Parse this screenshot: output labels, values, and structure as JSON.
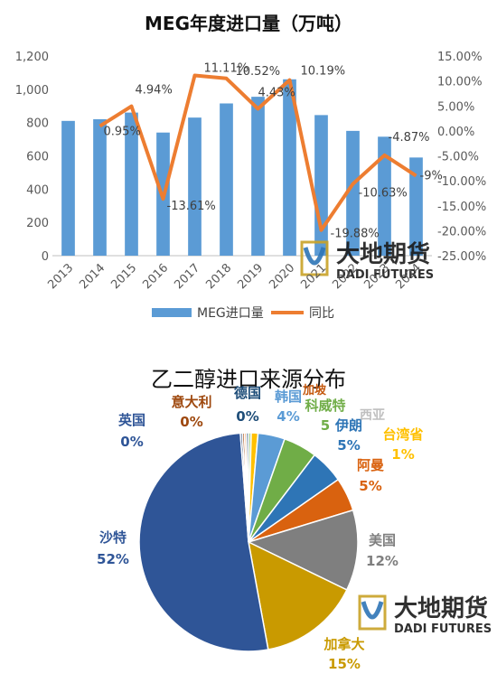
{
  "chart_data": [
    {
      "type": "bar",
      "title": "MEG年度进口量（万吨）",
      "categories": [
        "2013",
        "2014",
        "2015",
        "2016",
        "2017",
        "2018",
        "2019",
        "2020",
        "2021",
        "2022",
        "2023",
        "2024"
      ],
      "series": [
        {
          "name": "MEG进口量",
          "type": "bar",
          "axis": "left",
          "color": "#5B9BD5",
          "values": [
            810,
            820,
            860,
            740,
            830,
            915,
            955,
            1060,
            845,
            750,
            715,
            590
          ]
        },
        {
          "name": "同比",
          "type": "line",
          "axis": "right",
          "color": "#ED7D31",
          "values": [
            null,
            0.95,
            4.94,
            -13.61,
            11.11,
            10.52,
            4.43,
            10.19,
            -19.88,
            -10.63,
            -4.87,
            -9.0
          ],
          "labels": [
            "",
            "0.95%",
            "4.94%",
            "-13.61%",
            "11.11%",
            "10.52%",
            "4.43%",
            "10.19%",
            "-19.88%",
            "-10.63%",
            "-4.87%",
            "-9%"
          ]
        }
      ],
      "y_left": {
        "ylim": [
          0,
          1200
        ],
        "ticks": [
          "0",
          "200",
          "400",
          "600",
          "800",
          "1,000",
          "1,200"
        ]
      },
      "y_right": {
        "ylim": [
          -25,
          15
        ],
        "ticks": [
          "15.00%",
          "10.00%",
          "5.00%",
          "0.00%",
          "-5.00%",
          "-10.00%",
          "-15.00%",
          "-20.00%",
          "-25.00%"
        ]
      },
      "grid": false,
      "legend": "bottom"
    },
    {
      "type": "pie",
      "title": "乙二醇进口来源分布",
      "slices": [
        {
          "label": "马来西亚",
          "value": 0.4,
          "pct": "",
          "color": "#A9D18E"
        },
        {
          "label": "台湾省",
          "value": 1,
          "pct": "1%",
          "color": "#FFC000"
        },
        {
          "label": "韩国",
          "value": 4,
          "pct": "4%",
          "color": "#5B9BD5"
        },
        {
          "label": "科威特",
          "value": 5,
          "pct": "5",
          "color": "#70AD47"
        },
        {
          "label": "伊朗",
          "value": 5,
          "pct": "5%",
          "color": "#2E75B6"
        },
        {
          "label": "阿曼",
          "value": 5,
          "pct": "5%",
          "color": "#D9620F"
        },
        {
          "label": "美国",
          "value": 12,
          "pct": "12%",
          "color": "#7F7F7F"
        },
        {
          "label": "加拿大",
          "value": 15,
          "pct": "15%",
          "color": "#C99A00"
        },
        {
          "label": "沙特",
          "value": 52,
          "pct": "52%",
          "color": "#2F5597"
        },
        {
          "label": "英国",
          "value": 0.3,
          "pct": "0%",
          "color": "#264478"
        },
        {
          "label": "意大利",
          "value": 0.3,
          "pct": "0%",
          "color": "#9E480E"
        },
        {
          "label": "新加坡",
          "value": 0.3,
          "pct": "",
          "color": "#F4B183"
        },
        {
          "label": "德国",
          "value": 0.3,
          "pct": "0%",
          "color": "#1F4E79"
        }
      ],
      "visible_label_text": {
        "sg": "加坡",
        "my": "西亚"
      }
    }
  ],
  "watermark": {
    "cn": "大地期货",
    "en": "DADI FUTURES"
  }
}
